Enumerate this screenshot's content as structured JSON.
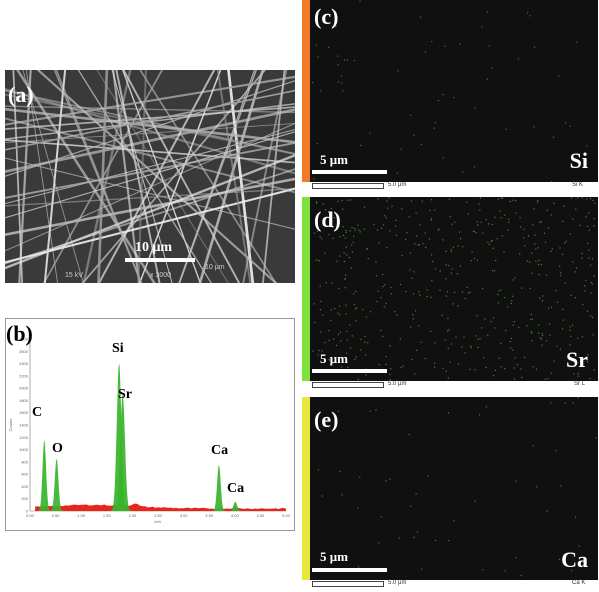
{
  "panels": {
    "a": {
      "label": "(a)",
      "scale_label": "10 μm",
      "info_kv": "15 kV",
      "info_mag": "x 3000",
      "info_scale": "10 μm"
    },
    "b": {
      "label": "(b)",
      "peak_labels": [
        "Si",
        "Sr",
        "C",
        "O",
        "Ca",
        "Ca"
      ],
      "x_axis_unit": "keV",
      "y_axis_unit": "Counts",
      "small_peak_labels": [
        "C",
        "O",
        "Si",
        "Sr",
        "Ca",
        "Ca"
      ]
    },
    "c": {
      "label": "(c)",
      "element": "Si",
      "scale_label": "5 μm",
      "caption_scale": "5.0 μm",
      "caption_line": "Si K",
      "bar_color": "#f07a2a"
    },
    "d": {
      "label": "(d)",
      "element": "Sr",
      "scale_label": "5 μm",
      "caption_scale": "5.0 μm",
      "caption_line": "Sr L",
      "bar_color": "#7ee03a"
    },
    "e": {
      "label": "(e)",
      "element": "Ca",
      "scale_label": "5 μm",
      "caption_scale": "5.0 μm",
      "caption_line": "Ca K",
      "bar_color": "#e8e83a"
    }
  },
  "chart_data": {
    "type": "area",
    "title": "",
    "xlabel": "keV",
    "ylabel": "Counts",
    "xlim": [
      0,
      5.0
    ],
    "ylim": [
      0,
      2800
    ],
    "x_ticks": [
      "0.00",
      "0.50",
      "1.00",
      "1.50",
      "2.00",
      "2.50",
      "3.00",
      "3.50",
      "4.00",
      "4.50",
      "5.00"
    ],
    "y_ticks": [
      "0",
      "200",
      "400",
      "600",
      "800",
      "1000",
      "1200",
      "1400",
      "1600",
      "1800",
      "2000",
      "2200",
      "2400",
      "2600",
      "2800"
    ],
    "peaks": [
      {
        "label": "C",
        "x": 0.28,
        "y": 1150
      },
      {
        "label": "O",
        "x": 0.52,
        "y": 850
      },
      {
        "label": "Si",
        "x": 1.74,
        "y": 2400
      },
      {
        "label": "Sr",
        "x": 1.81,
        "y": 1900
      },
      {
        "label": "Ca",
        "x": 3.69,
        "y": 750
      },
      {
        "label": "Ca",
        "x": 4.01,
        "y": 150
      }
    ]
  }
}
